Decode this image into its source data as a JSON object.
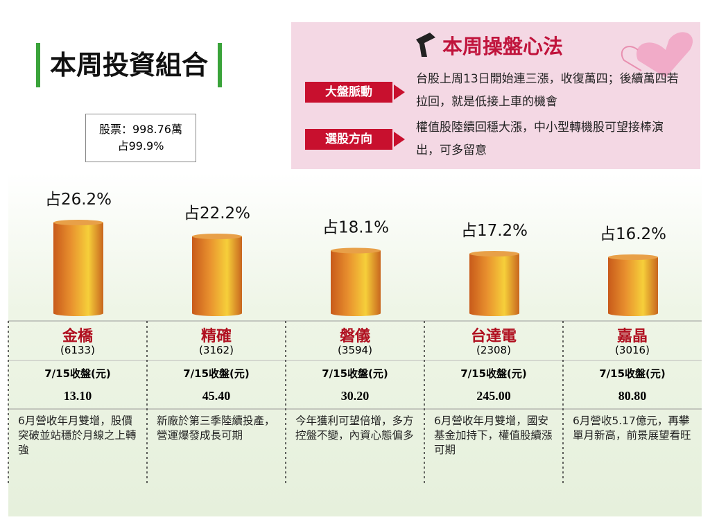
{
  "title": "本周投資組合",
  "stock_box": {
    "amount": "股票：998.76萬",
    "share": "占99.9%"
  },
  "strategy": {
    "title": "本周操盤心法",
    "items": [
      {
        "label": "大盤脈動",
        "text": "台股上周13日開始連三漲，收復萬四；後續萬四若拉回，就是低接上車的機會"
      },
      {
        "label": "選股方向",
        "text": "權值股陸續回穩大漲，中小型轉機股可望接棒演出，可多留意"
      }
    ]
  },
  "chart_data": {
    "type": "bar",
    "categories": [
      "金橋",
      "精確",
      "磐儀",
      "台達電",
      "嘉晶"
    ],
    "values": [
      26.2,
      22.2,
      18.1,
      17.2,
      16.2
    ],
    "value_labels": [
      "占26.2%",
      "占22.2%",
      "占18.1%",
      "占17.2%",
      "占16.2%"
    ]
  },
  "close_label": "7/15收盤(元)",
  "stocks": [
    {
      "code": "(6133)",
      "close": "13.10",
      "note": "6月營收年月雙增，股價突破並站穩於月線之上轉強"
    },
    {
      "code": "(3162)",
      "close": "45.40",
      "note": "新廠於第三季陸續投產，營運爆發成長可期"
    },
    {
      "code": "(3594)",
      "close": "30.20",
      "note": "今年獲利可望倍增，多方控盤不變，內資心態偏多"
    },
    {
      "code": "(2308)",
      "close": "245.00",
      "note": "6月營收年月雙增，國安基金加持下，權值股續漲可期"
    },
    {
      "code": "(3016)",
      "close": "80.80",
      "note": "6月營收5.17億元，再攀單月新高，前景展望看旺"
    }
  ]
}
